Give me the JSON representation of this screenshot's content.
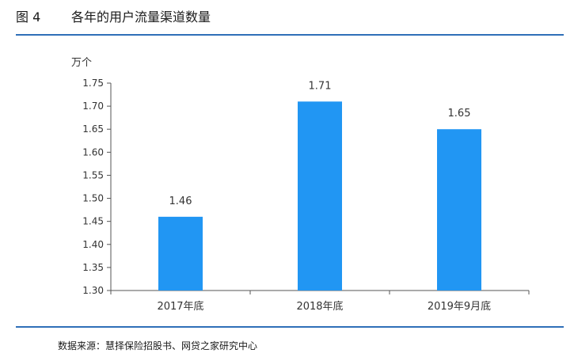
{
  "header": {
    "figure_label": "图 4",
    "title": "各年的用户流量渠道数量"
  },
  "footer": {
    "source": "数据来源：慧择保险招股书、网贷之家研究中心"
  },
  "chart_data": {
    "type": "bar",
    "title": "各年的用户流量渠道数量",
    "unit_label": "万个",
    "categories": [
      "2017年底",
      "2018年底",
      "2019年9月底"
    ],
    "values": [
      1.46,
      1.71,
      1.65
    ],
    "data_labels": [
      "1.46",
      "1.71",
      "1.65"
    ],
    "ylim": [
      1.3,
      1.75
    ],
    "yticks": [
      1.3,
      1.35,
      1.4,
      1.45,
      1.5,
      1.55,
      1.6,
      1.65,
      1.7,
      1.75
    ],
    "ytick_labels": [
      "1.30",
      "1.35",
      "1.40",
      "1.45",
      "1.50",
      "1.55",
      "1.60",
      "1.65",
      "1.70",
      "1.75"
    ],
    "grid": false,
    "legend": "none",
    "bar_color": "#2196f3",
    "axis_color": "#555555"
  }
}
